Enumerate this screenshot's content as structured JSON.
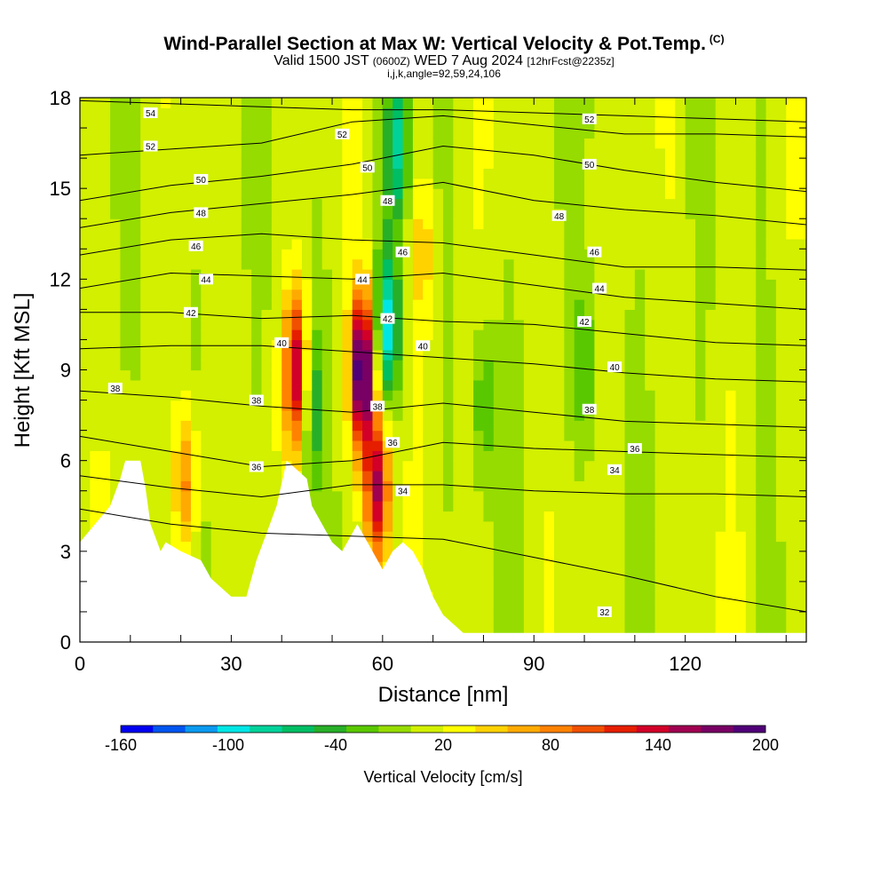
{
  "title": {
    "main": "Wind-Parallel Section at Max W: Vertical Velocity & Pot.Temp.",
    "copyright": "(C)",
    "valid_prefix": "Valid 1500 JST",
    "valid_utc": "(0600Z)",
    "valid_date": "WED 7 Aug 2024",
    "forecast": "[12hrFcst@2235z]",
    "indices": "i,j,k,angle=92,59,24,106"
  },
  "chart_data": {
    "type": "heatmap",
    "xlabel": "Distance [nm]",
    "ylabel": "Height [Kft MSL]",
    "xlim": [
      0,
      144
    ],
    "ylim": [
      0,
      18
    ],
    "xticks": [
      0,
      30,
      60,
      90,
      120
    ],
    "yticks": [
      0,
      3,
      6,
      9,
      12,
      15,
      18
    ],
    "colorbar": {
      "label": "Vertical Velocity [cm/s]",
      "tick_values": [
        -160,
        -100,
        -40,
        20,
        80,
        140,
        200
      ],
      "colors": [
        "#0000f0",
        "#0055f0",
        "#0a9af0",
        "#00e6e6",
        "#00d29a",
        "#00be64",
        "#28af28",
        "#5ac800",
        "#96dc00",
        "#d2f000",
        "#ffff00",
        "#ffd200",
        "#ffaa00",
        "#ff8200",
        "#f05000",
        "#e61e00",
        "#d20028",
        "#a00050",
        "#780064",
        "#500078"
      ],
      "min": -160,
      "max": 200
    },
    "velocity_features": [
      {
        "x": 21,
        "z": 5.2,
        "w": 80
      },
      {
        "x": 43,
        "z": 9.0,
        "w": 140
      },
      {
        "x": 46,
        "z": 8.0,
        "w": -60
      },
      {
        "x": 56,
        "z": 9.0,
        "w": 200
      },
      {
        "x": 59,
        "z": 5.0,
        "w": 150
      },
      {
        "x": 61,
        "z": 10.5,
        "w": -100
      },
      {
        "x": 63,
        "z": 16.5,
        "w": -80
      },
      {
        "x": 68,
        "z": 13.0,
        "w": 40
      },
      {
        "x": 80,
        "z": 8.0,
        "w": -40
      },
      {
        "x": 100,
        "z": 9.0,
        "w": -40
      }
    ],
    "terrain": [
      [
        0,
        3.3
      ],
      [
        3,
        3.9
      ],
      [
        6,
        4.5
      ],
      [
        8,
        5.4
      ],
      [
        9,
        6.0
      ],
      [
        12,
        6.0
      ],
      [
        13,
        5.1
      ],
      [
        14,
        3.9
      ],
      [
        16,
        3.0
      ],
      [
        17,
        3.3
      ],
      [
        20,
        3.0
      ],
      [
        24,
        2.7
      ],
      [
        26,
        2.1
      ],
      [
        28,
        1.8
      ],
      [
        30,
        1.5
      ],
      [
        33,
        1.5
      ],
      [
        35,
        2.7
      ],
      [
        37,
        3.6
      ],
      [
        39,
        4.5
      ],
      [
        41,
        6.0
      ],
      [
        43,
        5.7
      ],
      [
        45,
        5.4
      ],
      [
        46,
        4.5
      ],
      [
        48,
        3.9
      ],
      [
        50,
        3.3
      ],
      [
        52,
        3.0
      ],
      [
        53,
        3.3
      ],
      [
        54,
        3.6
      ],
      [
        55,
        3.9
      ],
      [
        57,
        3.3
      ],
      [
        59,
        2.7
      ],
      [
        60,
        2.4
      ],
      [
        62,
        3.0
      ],
      [
        64,
        3.3
      ],
      [
        66,
        3.0
      ],
      [
        68,
        2.4
      ],
      [
        70,
        1.5
      ],
      [
        72,
        0.9
      ],
      [
        74,
        0.6
      ],
      [
        76,
        0.3
      ],
      [
        144,
        0.3
      ]
    ],
    "isentropes": [
      {
        "label": "54",
        "values": [
          17.9,
          17.8,
          17.7,
          17.6,
          17.6,
          17.5,
          17.4,
          17.3,
          17.2
        ]
      },
      {
        "label": "52",
        "values": [
          16.1,
          16.3,
          16.5,
          17.2,
          17.4,
          17.1,
          16.8,
          16.8,
          16.7
        ]
      },
      {
        "label": "50",
        "values": [
          14.6,
          15.1,
          15.4,
          15.8,
          16.4,
          16.1,
          15.6,
          15.2,
          14.9
        ]
      },
      {
        "label": "48",
        "values": [
          13.7,
          14.2,
          14.5,
          14.8,
          15.2,
          14.6,
          14.3,
          14.1,
          13.8
        ]
      },
      {
        "label": "46",
        "values": [
          12.8,
          13.3,
          13.5,
          13.3,
          13.2,
          12.8,
          12.4,
          12.4,
          12.3
        ]
      },
      {
        "label": "44",
        "values": [
          11.7,
          12.2,
          12.1,
          12.0,
          12.2,
          11.8,
          11.4,
          11.2,
          11.0
        ]
      },
      {
        "label": "42",
        "values": [
          10.9,
          10.9,
          10.7,
          10.8,
          10.6,
          10.5,
          10.2,
          9.9,
          9.8
        ]
      },
      {
        "label": "40",
        "values": [
          9.7,
          9.8,
          9.8,
          9.6,
          9.4,
          9.2,
          8.9,
          8.7,
          8.6
        ]
      },
      {
        "label": "38",
        "values": [
          8.3,
          8.1,
          7.8,
          7.6,
          7.9,
          7.6,
          7.3,
          7.2,
          7.1
        ]
      },
      {
        "label": "36",
        "values": [
          6.8,
          6.3,
          5.8,
          6.0,
          6.6,
          6.4,
          6.3,
          6.2,
          6.1
        ]
      },
      {
        "label": "34",
        "values": [
          5.5,
          5.1,
          4.8,
          5.2,
          5.2,
          5.0,
          4.9,
          4.9,
          4.8
        ]
      },
      {
        "label": "32",
        "values": [
          4.4,
          3.9,
          3.6,
          3.5,
          3.4,
          2.8,
          2.2,
          1.5,
          1.0
        ]
      }
    ],
    "isentrope_x": [
      0,
      18,
      36,
      54,
      72,
      90,
      108,
      126,
      144
    ],
    "contour_labels": [
      {
        "text": "54",
        "x": 14,
        "z": 17.5
      },
      {
        "text": "52",
        "x": 14,
        "z": 16.4
      },
      {
        "text": "52",
        "x": 52,
        "z": 16.8
      },
      {
        "text": "52",
        "x": 101,
        "z": 17.3
      },
      {
        "text": "50",
        "x": 24,
        "z": 15.3
      },
      {
        "text": "50",
        "x": 57,
        "z": 15.7
      },
      {
        "text": "50",
        "x": 101,
        "z": 15.8
      },
      {
        "text": "48",
        "x": 24,
        "z": 14.2
      },
      {
        "text": "48",
        "x": 61,
        "z": 14.6
      },
      {
        "text": "48",
        "x": 95,
        "z": 14.1
      },
      {
        "text": "46",
        "x": 23,
        "z": 13.1
      },
      {
        "text": "46",
        "x": 64,
        "z": 12.9
      },
      {
        "text": "46",
        "x": 102,
        "z": 12.9
      },
      {
        "text": "44",
        "x": 25,
        "z": 12.0
      },
      {
        "text": "44",
        "x": 56,
        "z": 12.0
      },
      {
        "text": "44",
        "x": 103,
        "z": 11.7
      },
      {
        "text": "42",
        "x": 22,
        "z": 10.9
      },
      {
        "text": "42",
        "x": 61,
        "z": 10.7
      },
      {
        "text": "42",
        "x": 100,
        "z": 10.6
      },
      {
        "text": "40",
        "x": 40,
        "z": 9.9
      },
      {
        "text": "40",
        "x": 68,
        "z": 9.8
      },
      {
        "text": "40",
        "x": 106,
        "z": 9.1
      },
      {
        "text": "38",
        "x": 7,
        "z": 8.4
      },
      {
        "text": "38",
        "x": 35,
        "z": 8.0
      },
      {
        "text": "38",
        "x": 59,
        "z": 7.8
      },
      {
        "text": "38",
        "x": 101,
        "z": 7.7
      },
      {
        "text": "36",
        "x": 35,
        "z": 5.8
      },
      {
        "text": "36",
        "x": 62,
        "z": 6.6
      },
      {
        "text": "36",
        "x": 110,
        "z": 6.4
      },
      {
        "text": "34",
        "x": 64,
        "z": 5.0
      },
      {
        "text": "34",
        "x": 106,
        "z": 5.7
      },
      {
        "text": "32",
        "x": 104,
        "z": 1.0
      }
    ]
  }
}
